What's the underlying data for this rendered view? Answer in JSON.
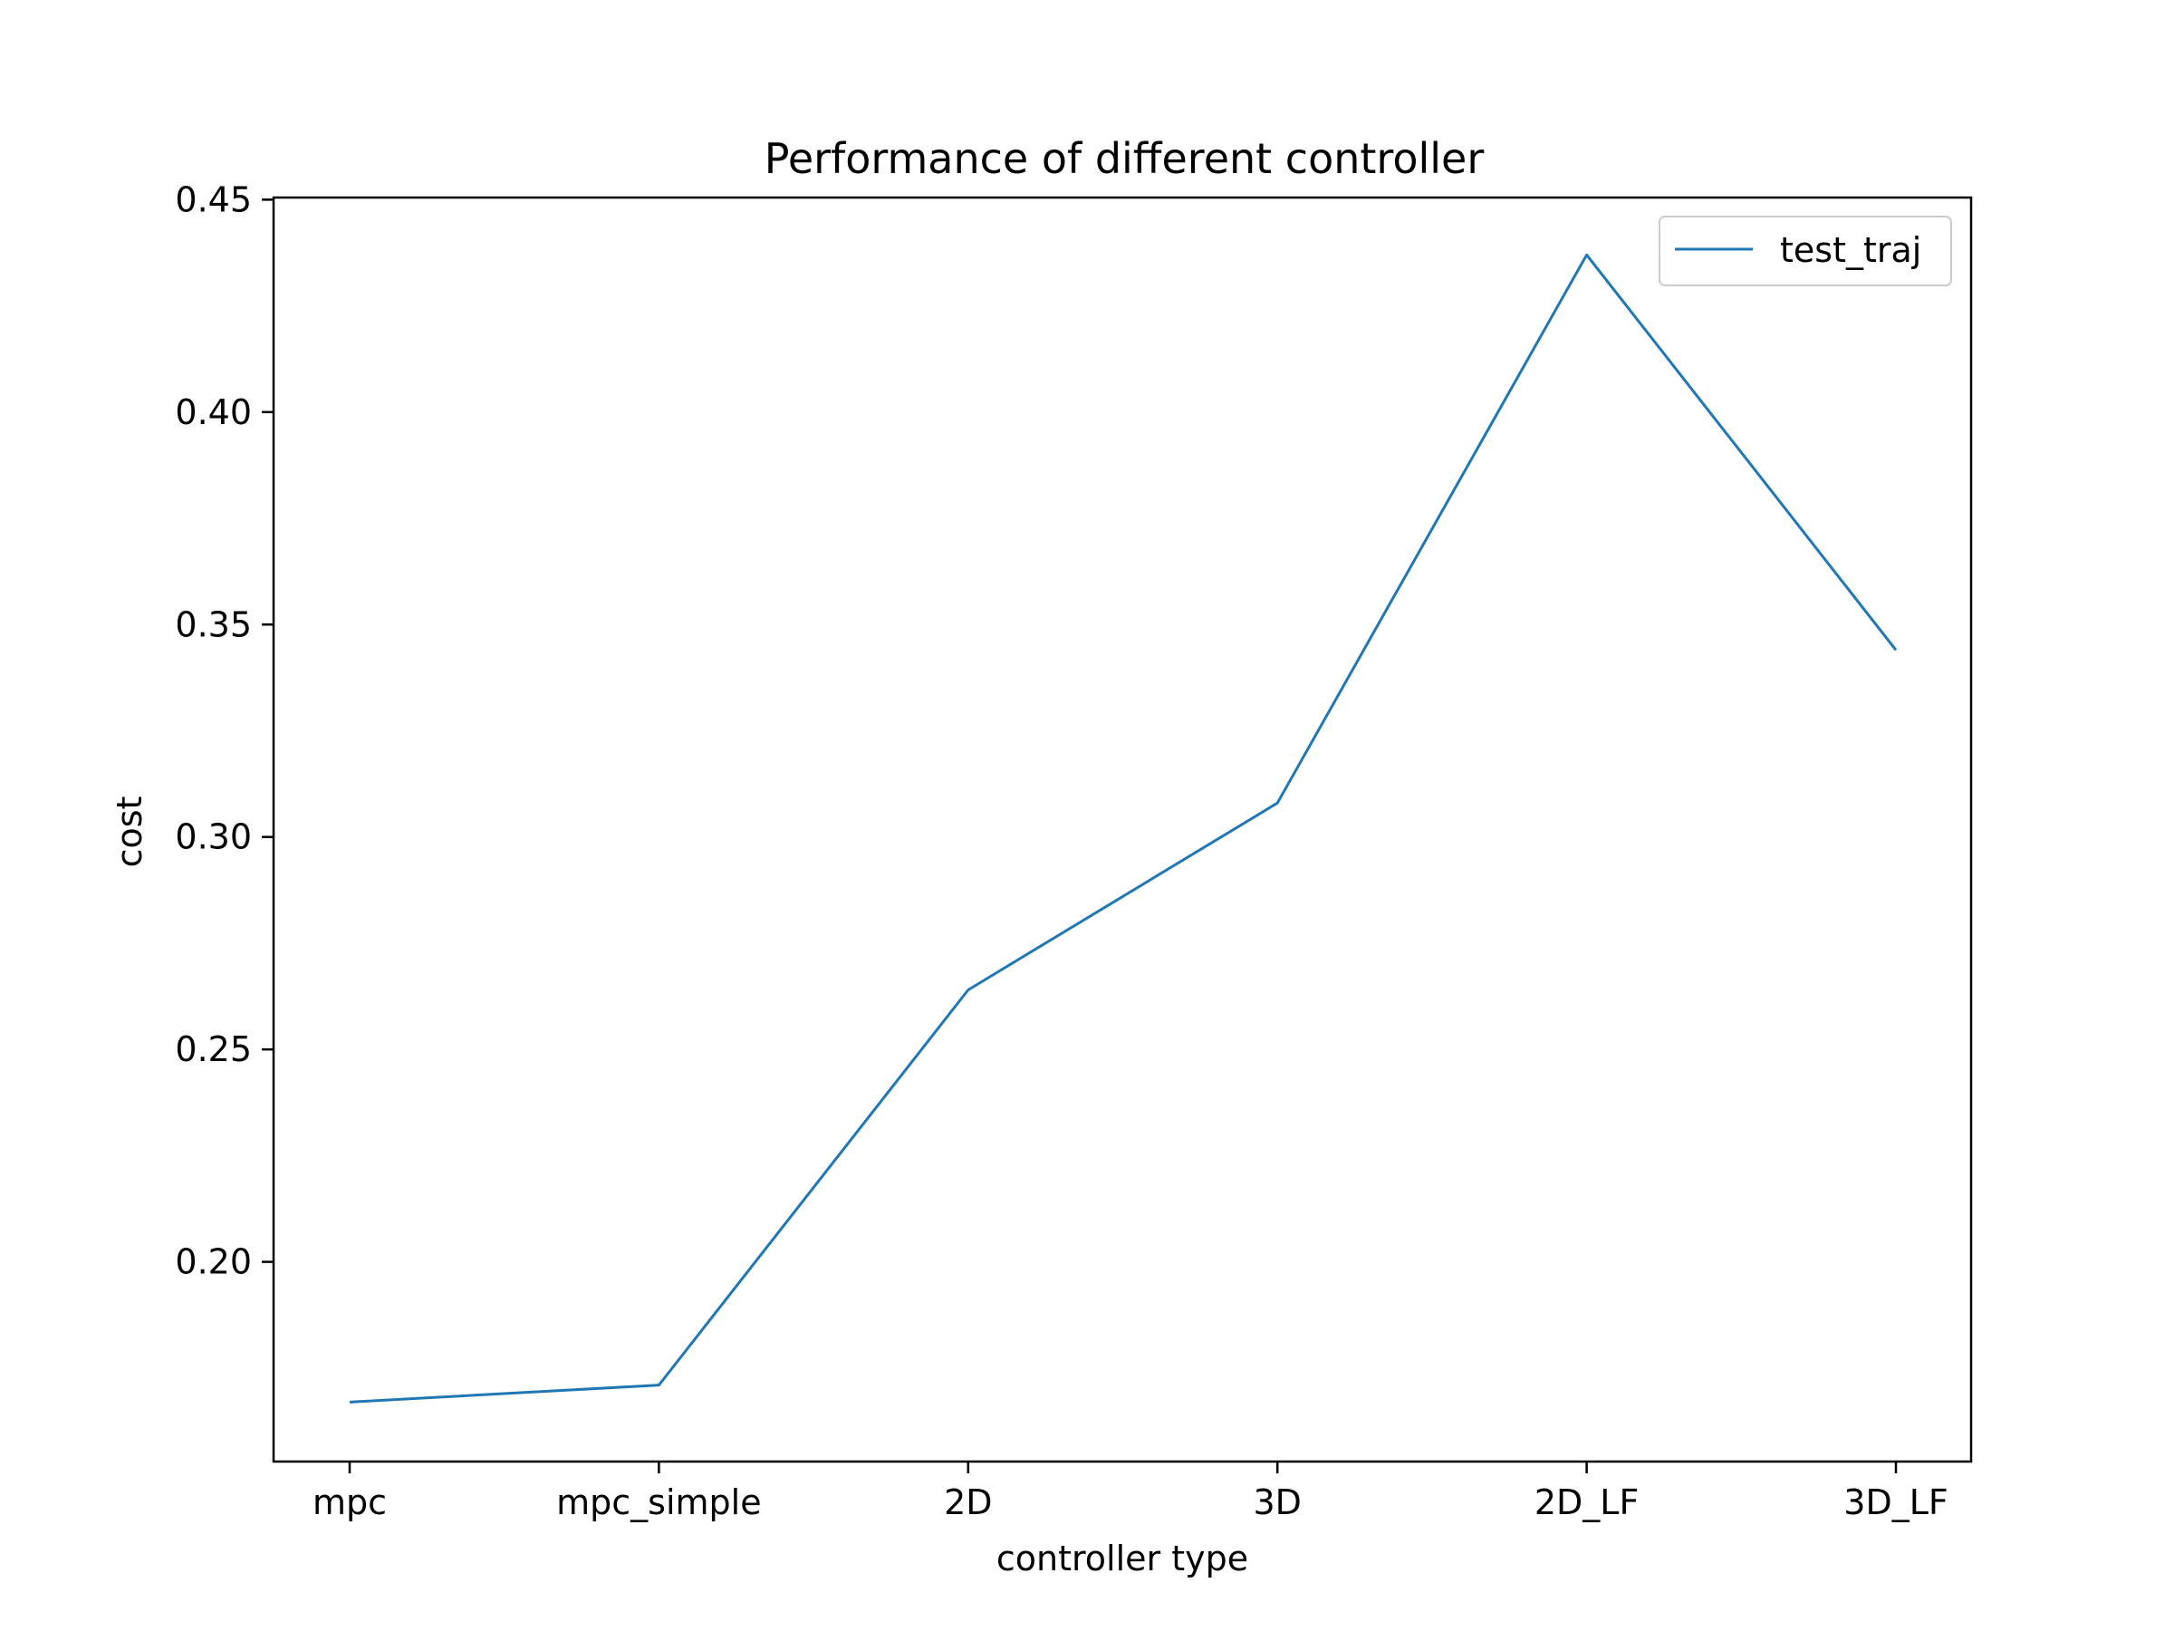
{
  "chart_data": {
    "type": "line",
    "title": "Performance of different controller",
    "xlabel": "controller type",
    "ylabel": "cost",
    "categories": [
      "mpc",
      "mpc_simple",
      "2D",
      "3D",
      "2D_LF",
      "3D_LF"
    ],
    "series": [
      {
        "name": "test_traj",
        "color": "#1f77b4",
        "values": [
          0.167,
          0.171,
          0.264,
          0.308,
          0.437,
          0.344
        ]
      }
    ],
    "yticks": [
      0.2,
      0.25,
      0.3,
      0.35,
      0.4,
      0.45
    ],
    "ytick_labels": [
      "0.20",
      "0.25",
      "0.30",
      "0.35",
      "0.40",
      "0.45"
    ],
    "ylim": [
      0.153,
      0.4505
    ],
    "grid": false,
    "legend_position": "top-right"
  }
}
